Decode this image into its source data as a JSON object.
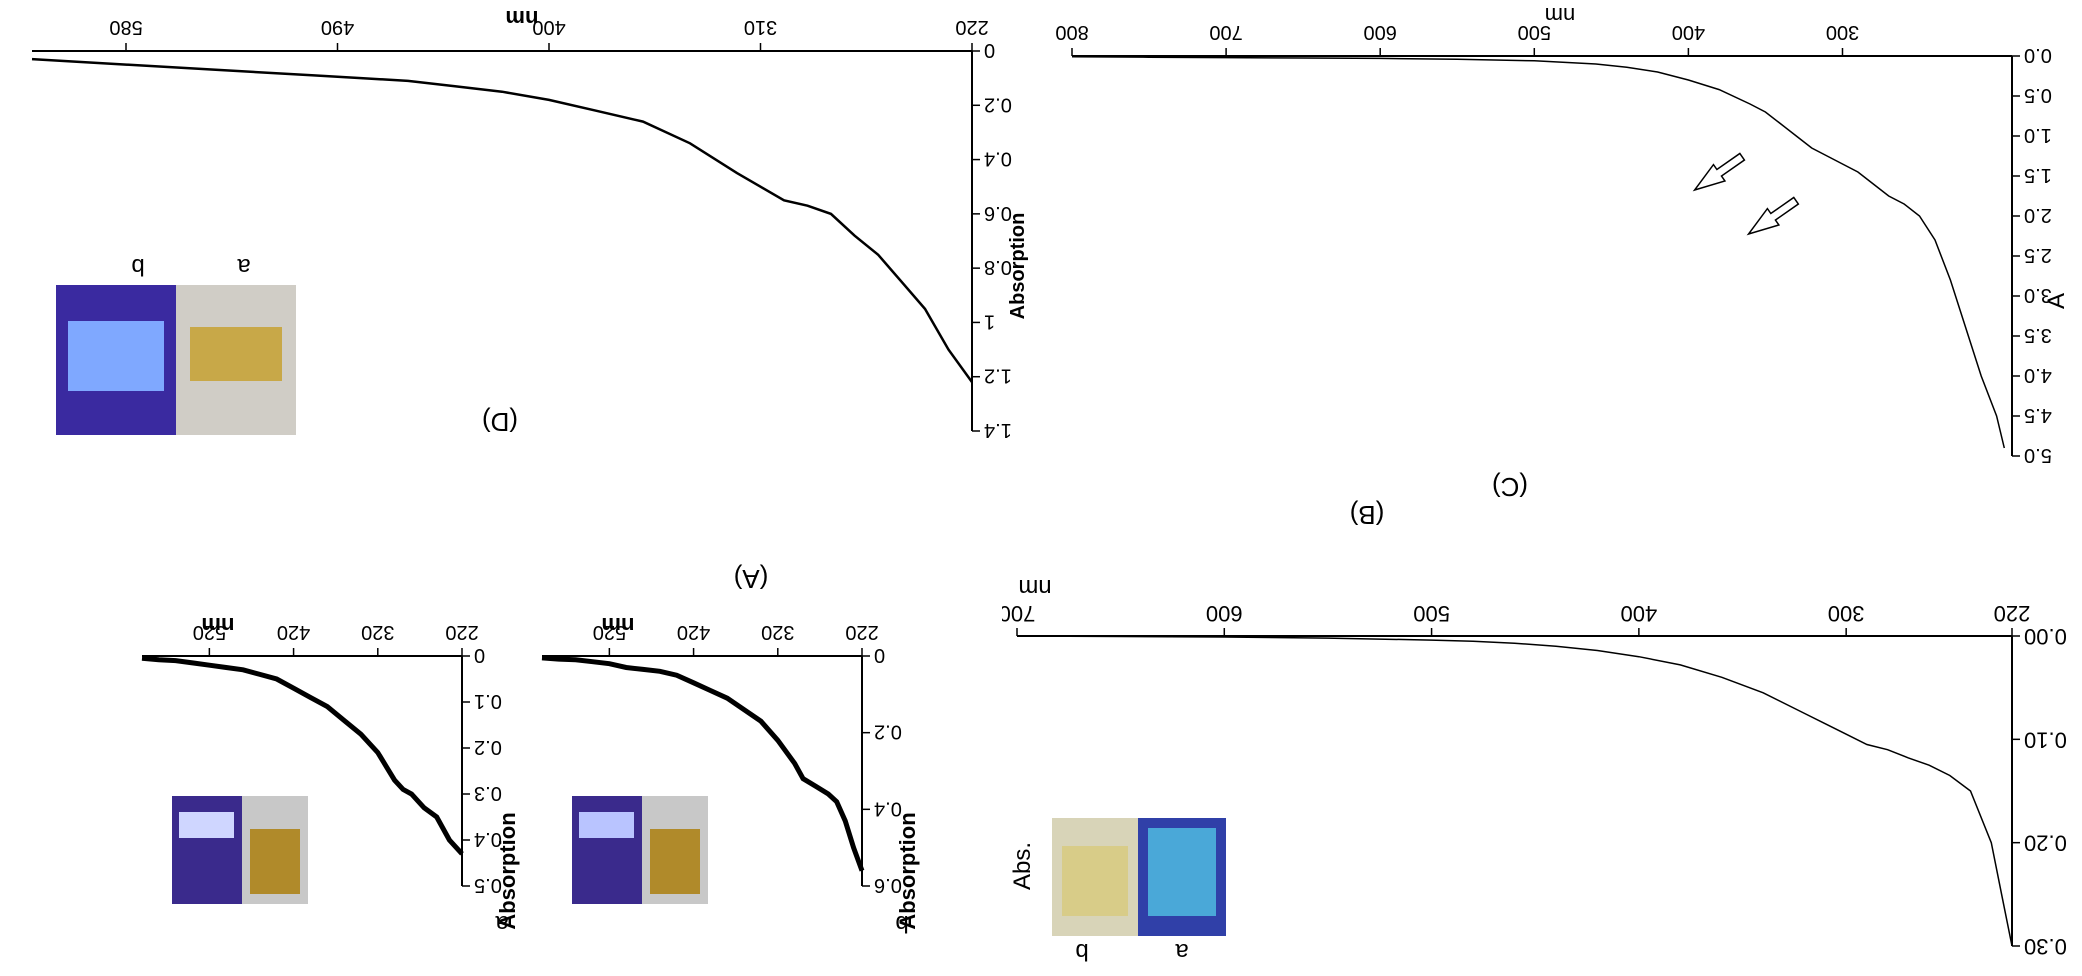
{
  "chart_data": [
    {
      "panel": "(A)",
      "type": "line",
      "xlabel": "nm",
      "ylabel": "Absorption",
      "xticks": [
        "220",
        "320",
        "420",
        "520"
      ],
      "xlim": [
        220,
        600
      ],
      "subplots": [
        {
          "label": "a",
          "ylim": [
            0,
            0.5
          ],
          "yticks": [
            "0",
            "0.1",
            "0.2",
            "0.3",
            "0.4",
            "0.5"
          ],
          "series": [
            {
              "x": [
                220,
                235,
                250,
                265,
                280,
                290,
                300,
                310,
                320,
                340,
                360,
                380,
                400,
                420,
                440,
                460,
                480,
                500,
                520,
                540,
                560,
                580,
                600
              ],
              "values": [
                0.43,
                0.4,
                0.35,
                0.33,
                0.3,
                0.29,
                0.27,
                0.24,
                0.21,
                0.17,
                0.14,
                0.11,
                0.09,
                0.07,
                0.05,
                0.04,
                0.03,
                0.025,
                0.02,
                0.015,
                0.01,
                0.008,
                0.005
              ]
            }
          ]
        },
        {
          "label": "b",
          "ylim": [
            0,
            0.6
          ],
          "yticks": [
            "0",
            "0.2",
            "0.4",
            "0.6"
          ],
          "series": [
            {
              "x": [
                220,
                230,
                240,
                250,
                260,
                275,
                290,
                300,
                320,
                340,
                360,
                380,
                400,
                420,
                440,
                460,
                480,
                500,
                520,
                540,
                560,
                580,
                600
              ],
              "values": [
                0.56,
                0.5,
                0.43,
                0.38,
                0.36,
                0.34,
                0.32,
                0.28,
                0.22,
                0.17,
                0.14,
                0.11,
                0.09,
                0.07,
                0.05,
                0.04,
                0.035,
                0.03,
                0.02,
                0.015,
                0.01,
                0.008,
                0.005
              ]
            }
          ]
        }
      ],
      "photo_labels": [
        "a",
        "b"
      ]
    },
    {
      "panel": "(B)",
      "type": "line",
      "xlabel": "nm",
      "ylabel": "Abs.",
      "xticks": [
        "220",
        "300",
        "400",
        "500",
        "600",
        "700"
      ],
      "xlim": [
        220,
        700
      ],
      "ylim": [
        0,
        0.3
      ],
      "yticks": [
        "0.00",
        "0.10",
        "0.20",
        "0.30"
      ],
      "series": [
        {
          "x": [
            220,
            225,
            230,
            240,
            250,
            260,
            270,
            280,
            290,
            300,
            310,
            320,
            340,
            360,
            380,
            400,
            420,
            440,
            460,
            480,
            500,
            550,
            600,
            650,
            700
          ],
          "values": [
            0.3,
            0.25,
            0.2,
            0.15,
            0.135,
            0.125,
            0.118,
            0.11,
            0.105,
            0.095,
            0.085,
            0.075,
            0.055,
            0.04,
            0.028,
            0.02,
            0.014,
            0.01,
            0.007,
            0.005,
            0.004,
            0.002,
            0.001,
            0.0005,
            0.0
          ]
        }
      ],
      "photo_labels": [
        "a",
        "b"
      ]
    },
    {
      "panel": "(C)",
      "type": "line",
      "xlabel": "nm",
      "ylabel": "A",
      "xticks": [
        "300",
        "400",
        "500",
        "600",
        "700",
        "800"
      ],
      "xlim": [
        190,
        800
      ],
      "ylim": [
        0,
        5.0
      ],
      "yticks": [
        "0.0",
        "0.5",
        "1.0",
        "1.5",
        "2.0",
        "2.5",
        "3.0",
        "3.5",
        "4.0",
        "4.5",
        "5.0"
      ],
      "series": [
        {
          "x": [
            195,
            200,
            210,
            220,
            230,
            240,
            250,
            260,
            270,
            280,
            290,
            300,
            310,
            320,
            330,
            340,
            350,
            360,
            380,
            400,
            420,
            440,
            460,
            480,
            500,
            550,
            600,
            650,
            700,
            750,
            800
          ],
          "values": [
            4.9,
            4.5,
            4.0,
            3.4,
            2.8,
            2.3,
            2.0,
            1.85,
            1.75,
            1.6,
            1.45,
            1.35,
            1.25,
            1.15,
            1.0,
            0.85,
            0.7,
            0.6,
            0.42,
            0.3,
            0.2,
            0.14,
            0.1,
            0.08,
            0.06,
            0.04,
            0.03,
            0.025,
            0.02,
            0.015,
            0.01
          ]
        }
      ],
      "annotations": [
        "arrow",
        "arrow"
      ]
    },
    {
      "panel": "(D)",
      "type": "line",
      "xlabel": "nm",
      "ylabel": "Absorption",
      "xticks": [
        "220",
        "310",
        "400",
        "490",
        "580"
      ],
      "xlim": [
        220,
        620
      ],
      "ylim": [
        0,
        1.4
      ],
      "yticks": [
        "0",
        "0.2",
        "0.4",
        "0.6",
        "0.8",
        "1",
        "1.2",
        "1.4"
      ],
      "series": [
        {
          "x": [
            220,
            230,
            240,
            250,
            260,
            270,
            280,
            290,
            300,
            310,
            320,
            340,
            360,
            380,
            400,
            420,
            440,
            460,
            480,
            500,
            540,
            580,
            620
          ],
          "values": [
            1.22,
            1.1,
            0.95,
            0.85,
            0.75,
            0.68,
            0.6,
            0.57,
            0.55,
            0.5,
            0.45,
            0.34,
            0.26,
            0.22,
            0.18,
            0.15,
            0.13,
            0.11,
            0.1,
            0.09,
            0.07,
            0.05,
            0.03
          ]
        }
      ],
      "photo_labels": [
        "a",
        "b"
      ]
    }
  ]
}
